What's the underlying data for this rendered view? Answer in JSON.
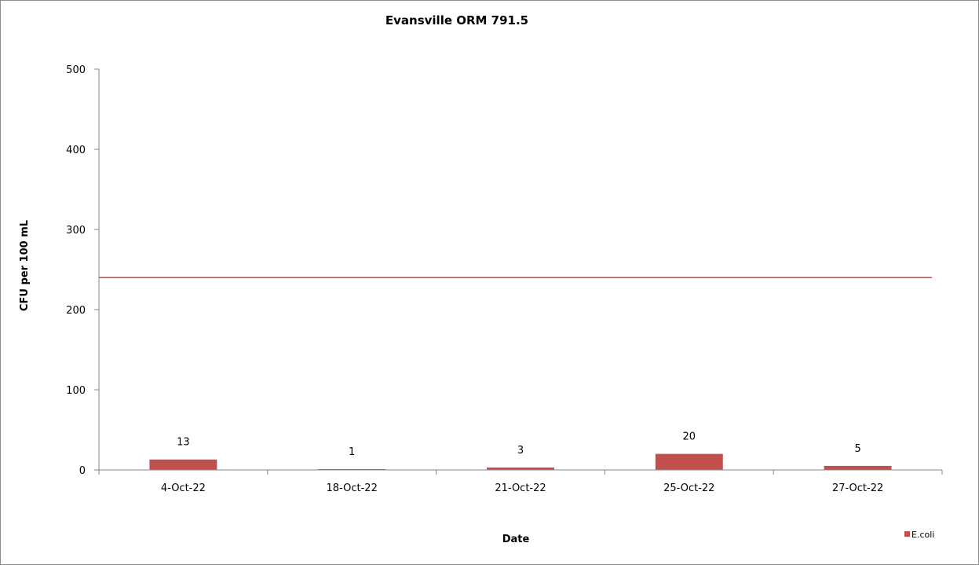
{
  "chart_data": {
    "type": "bar",
    "title": "Evansville ORM 791.5",
    "xlabel": "Date",
    "ylabel": "CFU per 100 mL",
    "categories": [
      "4-Oct-22",
      "18-Oct-22",
      "21-Oct-22",
      "25-Oct-22",
      "27-Oct-22"
    ],
    "series": [
      {
        "name": "E.coli",
        "values": [
          13,
          1,
          3,
          20,
          5
        ],
        "color": "#c0504d"
      }
    ],
    "data_labels": [
      "13",
      "1",
      "3",
      "20",
      "5"
    ],
    "ylim": [
      0,
      500
    ],
    "yticks": [
      0,
      100,
      200,
      300,
      400,
      500
    ],
    "reference_line": {
      "value": 240,
      "color": "#c00000"
    },
    "grid": false,
    "legend": {
      "position": "bottom-right"
    }
  }
}
